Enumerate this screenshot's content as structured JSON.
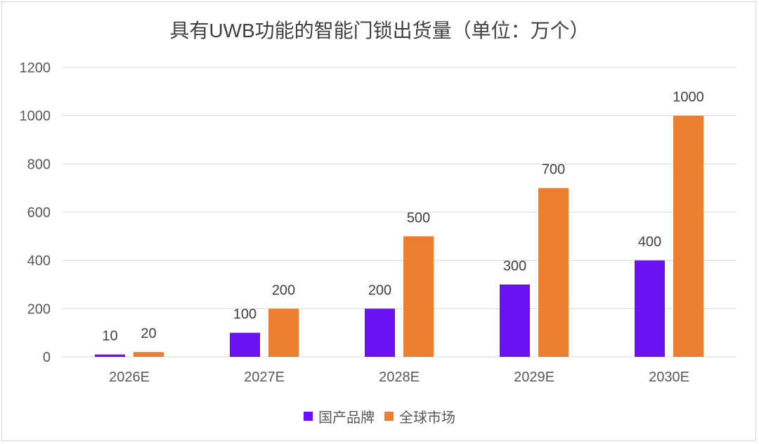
{
  "chart_data": {
    "type": "bar",
    "title": "具有UWB功能的智能门锁出货量（单位：万个）",
    "categories": [
      "2026E",
      "2027E",
      "2028E",
      "2029E",
      "2030E"
    ],
    "series": [
      {
        "name": "国产品牌",
        "values": [
          10,
          100,
          200,
          300,
          400
        ],
        "color": "#6a12f2"
      },
      {
        "name": "全球市场",
        "values": [
          20,
          200,
          500,
          700,
          1000
        ],
        "color": "#ed7d31"
      }
    ],
    "ylim": [
      0,
      1200
    ],
    "yticks": [
      0,
      200,
      400,
      600,
      800,
      1000,
      1200
    ],
    "grid": true,
    "data_labels": true,
    "legend": "bottom"
  }
}
